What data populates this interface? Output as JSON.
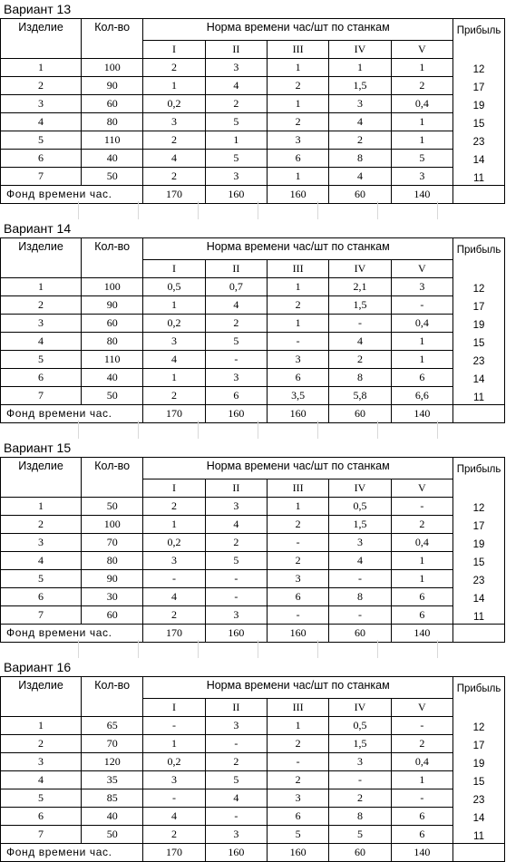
{
  "headers": {
    "item": "Изделие",
    "qty": "Кол-во",
    "norm": "Норма времени час/шт по станкам",
    "profit": "Прибыль",
    "machines": [
      "I",
      "II",
      "III",
      "IV",
      "V"
    ],
    "fund_label": "Фонд времени час."
  },
  "variants": [
    {
      "title": "Вариант 13",
      "rows": [
        {
          "item": "1",
          "qty": "100",
          "norms": [
            "2",
            "3",
            "1",
            "1",
            "1"
          ],
          "profit": "12"
        },
        {
          "item": "2",
          "qty": "90",
          "norms": [
            "1",
            "4",
            "2",
            "1,5",
            "2"
          ],
          "profit": "17"
        },
        {
          "item": "3",
          "qty": "60",
          "norms": [
            "0,2",
            "2",
            "1",
            "3",
            "0,4"
          ],
          "profit": "19"
        },
        {
          "item": "4",
          "qty": "80",
          "norms": [
            "3",
            "5",
            "2",
            "4",
            "1"
          ],
          "profit": "15"
        },
        {
          "item": "5",
          "qty": "110",
          "norms": [
            "2",
            "1",
            "3",
            "2",
            "1"
          ],
          "profit": "23"
        },
        {
          "item": "6",
          "qty": "40",
          "norms": [
            "4",
            "5",
            "6",
            "8",
            "5"
          ],
          "profit": "14"
        },
        {
          "item": "7",
          "qty": "50",
          "norms": [
            "2",
            "3",
            "1",
            "4",
            "3"
          ],
          "profit": "11"
        }
      ],
      "fund": [
        "170",
        "160",
        "160",
        "60",
        "140"
      ]
    },
    {
      "title": "Вариант 14",
      "rows": [
        {
          "item": "1",
          "qty": "100",
          "norms": [
            "0,5",
            "0,7",
            "1",
            "2,1",
            "3"
          ],
          "profit": "12"
        },
        {
          "item": "2",
          "qty": "90",
          "norms": [
            "1",
            "4",
            "2",
            "1,5",
            "-"
          ],
          "profit": "17"
        },
        {
          "item": "3",
          "qty": "60",
          "norms": [
            "0,2",
            "2",
            "1",
            "-",
            "0,4"
          ],
          "profit": "19"
        },
        {
          "item": "4",
          "qty": "80",
          "norms": [
            "3",
            "5",
            "-",
            "4",
            "1"
          ],
          "profit": "15"
        },
        {
          "item": "5",
          "qty": "110",
          "norms": [
            "4",
            "-",
            "3",
            "2",
            "1"
          ],
          "profit": "23"
        },
        {
          "item": "6",
          "qty": "40",
          "norms": [
            "1",
            "3",
            "6",
            "8",
            "6"
          ],
          "profit": "14"
        },
        {
          "item": "7",
          "qty": "50",
          "norms": [
            "2",
            "6",
            "3,5",
            "5,8",
            "6,6"
          ],
          "profit": "11"
        }
      ],
      "fund": [
        "170",
        "160",
        "160",
        "60",
        "140"
      ]
    },
    {
      "title": "Вариант 15",
      "rows": [
        {
          "item": "1",
          "qty": "50",
          "norms": [
            "2",
            "3",
            "1",
            "0,5",
            "-"
          ],
          "profit": "12"
        },
        {
          "item": "2",
          "qty": "100",
          "norms": [
            "1",
            "4",
            "2",
            "1,5",
            "2"
          ],
          "profit": "17"
        },
        {
          "item": "3",
          "qty": "70",
          "norms": [
            "0,2",
            "2",
            "-",
            "3",
            "0,4"
          ],
          "profit": "19"
        },
        {
          "item": "4",
          "qty": "80",
          "norms": [
            "3",
            "5",
            "2",
            "4",
            "1"
          ],
          "profit": "15"
        },
        {
          "item": "5",
          "qty": "90",
          "norms": [
            "-",
            "-",
            "3",
            "-",
            "1"
          ],
          "profit": "23"
        },
        {
          "item": "6",
          "qty": "30",
          "norms": [
            "4",
            "-",
            "6",
            "8",
            "6"
          ],
          "profit": "14"
        },
        {
          "item": "7",
          "qty": "60",
          "norms": [
            "2",
            "3",
            "-",
            "-",
            "6"
          ],
          "profit": "11"
        }
      ],
      "fund": [
        "170",
        "160",
        "160",
        "60",
        "140"
      ]
    },
    {
      "title": "Вариант 16",
      "rows": [
        {
          "item": "1",
          "qty": "65",
          "norms": [
            "-",
            "3",
            "1",
            "0,5",
            "-"
          ],
          "profit": "12"
        },
        {
          "item": "2",
          "qty": "70",
          "norms": [
            "1",
            "-",
            "2",
            "1,5",
            "2"
          ],
          "profit": "17"
        },
        {
          "item": "3",
          "qty": "120",
          "norms": [
            "0,2",
            "2",
            "-",
            "3",
            "0,4"
          ],
          "profit": "19"
        },
        {
          "item": "4",
          "qty": "35",
          "norms": [
            "3",
            "5",
            "2",
            "-",
            "1"
          ],
          "profit": "15"
        },
        {
          "item": "5",
          "qty": "85",
          "norms": [
            "-",
            "4",
            "3",
            "2",
            "-"
          ],
          "profit": "23"
        },
        {
          "item": "6",
          "qty": "40",
          "norms": [
            "4",
            "-",
            "6",
            "8",
            "6"
          ],
          "profit": "14"
        },
        {
          "item": "7",
          "qty": "50",
          "norms": [
            "2",
            "3",
            "5",
            "5",
            "6"
          ],
          "profit": "11"
        }
      ],
      "fund": [
        "170",
        "160",
        "160",
        "60",
        "140"
      ]
    }
  ]
}
